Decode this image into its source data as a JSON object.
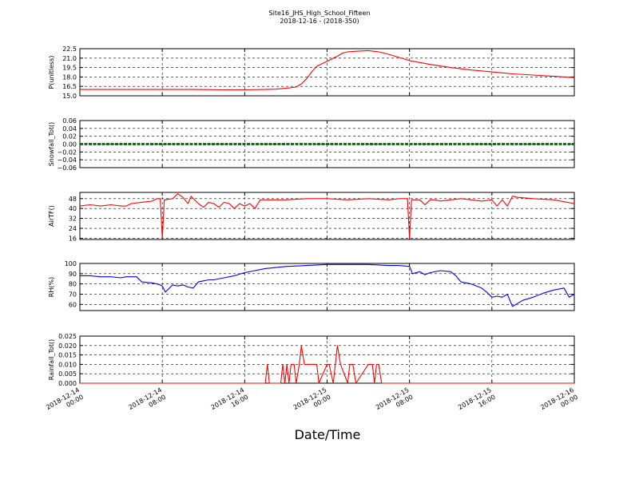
{
  "figure": {
    "title_line1": "Site16_JHS_High_School_Fifteen",
    "title_line2": "2018-12-16 - (2018-350)",
    "xlabel": "Date/Time"
  },
  "x_ticks": [
    {
      "x": 0,
      "line1": "2018-12-14",
      "line2": "00:00"
    },
    {
      "x": 8,
      "line1": "2018-12-14",
      "line2": "08:00"
    },
    {
      "x": 16,
      "line1": "2018-12-14",
      "line2": "16:00"
    },
    {
      "x": 24,
      "line1": "2018-12-15",
      "line2": "00:00"
    },
    {
      "x": 32,
      "line1": "2018-12-15",
      "line2": "08:00"
    },
    {
      "x": 40,
      "line1": "2018-12-15",
      "line2": "16:00"
    },
    {
      "x": 48,
      "line1": "2018-12-16",
      "line2": "00:00"
    }
  ],
  "chart_data": [
    {
      "type": "line",
      "ylabel": "P(unitless)",
      "ylim": [
        15.0,
        22.5
      ],
      "yticks": [
        "15.0",
        "16.5",
        "18.0",
        "19.5",
        "21.0",
        "22.5"
      ],
      "grid": true,
      "x_unit": "hours since 2018-12-14 00:00",
      "xlim": [
        0,
        48
      ],
      "series": [
        {
          "color": "#ff0000",
          "x": [
            0,
            4,
            8,
            11,
            14,
            16,
            18,
            19,
            20,
            21,
            21.5,
            22,
            22.5,
            23,
            24,
            25,
            25.5,
            26,
            27,
            28,
            29,
            30,
            31,
            32,
            34,
            36,
            38,
            40,
            42,
            44,
            46,
            48
          ],
          "y": [
            16.0,
            16.0,
            16.0,
            16.0,
            15.95,
            15.95,
            16.0,
            16.05,
            16.2,
            16.4,
            16.9,
            17.7,
            18.8,
            19.7,
            20.5,
            21.3,
            21.8,
            22.0,
            22.1,
            22.2,
            22.0,
            21.6,
            21.1,
            20.6,
            20.0,
            19.5,
            19.1,
            18.8,
            18.5,
            18.3,
            18.1,
            17.9
          ]
        }
      ]
    },
    {
      "type": "line",
      "ylabel": "Snowfall_Tot()",
      "ylim": [
        -0.06,
        0.06
      ],
      "yticks": [
        "−0.06",
        "−0.04",
        "−0.02",
        "0.00",
        "0.02",
        "0.04",
        "0.06"
      ],
      "grid": true,
      "x_unit": "hours since 2018-12-14 00:00",
      "xlim": [
        0,
        48
      ],
      "series": [
        {
          "color": "#008000",
          "marker": "dots",
          "x": [
            0,
            48
          ],
          "y": [
            0.0,
            0.0
          ]
        }
      ]
    },
    {
      "type": "line",
      "ylabel": "AirTF()",
      "ylim": [
        15,
        53
      ],
      "yticks": [
        "16",
        "24",
        "32",
        "40",
        "48"
      ],
      "grid": true,
      "x_unit": "hours since 2018-12-14 00:00",
      "xlim": [
        0,
        48
      ],
      "series": [
        {
          "color": "#ff0000",
          "x": [
            0,
            1,
            2,
            3,
            4,
            4.5,
            5,
            6,
            7,
            7.5,
            7.8,
            8.0,
            8.2,
            9,
            9.5,
            10,
            10.5,
            10.8,
            11,
            11.5,
            12,
            12.5,
            13,
            13.5,
            14,
            14.5,
            15,
            15.5,
            16,
            16.5,
            17,
            17.5,
            17.8,
            18,
            20,
            22,
            24,
            26,
            28,
            30,
            31,
            31.8,
            32.0,
            32.2,
            33,
            33.5,
            34,
            34.5,
            35,
            36,
            37,
            38,
            39,
            40,
            40.5,
            41,
            41.5,
            42,
            42.5,
            44,
            46,
            48
          ],
          "y": [
            42,
            43,
            42,
            43,
            42,
            42,
            44,
            45,
            46,
            48,
            48,
            16,
            47,
            48,
            52,
            49,
            44,
            50,
            48,
            44,
            41,
            45,
            44,
            41,
            45,
            44,
            40,
            44,
            42,
            44,
            40,
            47,
            47,
            47,
            47,
            48,
            48,
            47,
            48,
            47,
            48,
            48,
            16,
            47,
            47,
            43,
            47,
            47,
            46,
            47,
            48,
            47,
            46,
            47,
            42,
            47,
            42,
            50,
            49,
            48,
            47,
            44
          ]
        }
      ]
    },
    {
      "type": "line",
      "ylabel": "RH(%)",
      "ylim": [
        54,
        100
      ],
      "yticks": [
        "60",
        "70",
        "80",
        "90",
        "100"
      ],
      "grid": true,
      "x_unit": "hours since 2018-12-14 00:00",
      "xlim": [
        0,
        48
      ],
      "series": [
        {
          "color": "#0000ff",
          "x": [
            0,
            1,
            2,
            3,
            4,
            4.5,
            5,
            5.5,
            6,
            7,
            7.5,
            7.8,
            8.0,
            8.3,
            9,
            9.5,
            10,
            10.5,
            11,
            11.5,
            12,
            12.5,
            13,
            14,
            15,
            16,
            17,
            17.5,
            18,
            20,
            22,
            24,
            26,
            28,
            30,
            31,
            32,
            32.3,
            33,
            33.5,
            34,
            35,
            36,
            36.5,
            37,
            38,
            39,
            39.5,
            40,
            40.5,
            41,
            41.5,
            42,
            43,
            44,
            45,
            46,
            47,
            47.5,
            48
          ],
          "y": [
            88,
            88,
            87,
            87,
            86,
            87,
            87,
            87,
            82,
            81,
            80,
            79,
            78,
            72,
            79,
            78,
            79,
            77,
            76,
            82,
            83,
            84,
            84,
            86,
            88,
            91,
            93,
            94,
            95,
            97,
            98,
            99,
            99,
            99,
            98,
            98,
            97,
            90,
            92,
            89,
            91,
            93,
            92,
            88,
            82,
            80,
            76,
            72,
            67,
            68,
            67,
            70,
            58,
            64,
            67,
            71,
            74,
            76,
            67,
            70
          ]
        }
      ]
    },
    {
      "type": "line",
      "ylabel": "Rainfall_Tot()",
      "ylim": [
        0.0,
        0.025
      ],
      "yticks": [
        "0.000",
        "0.005",
        "0.010",
        "0.015",
        "0.020",
        "0.025"
      ],
      "grid": true,
      "x_unit": "hours since 2018-12-14 00:00",
      "xlim": [
        0,
        48
      ],
      "series": [
        {
          "color": "#ff0000",
          "x": [
            0,
            18,
            18.2,
            18.4,
            19.5,
            19.7,
            19.9,
            20.1,
            20.3,
            20.5,
            20.8,
            21.0,
            21.3,
            21.5,
            21.8,
            22.0,
            23,
            23.2,
            24,
            24.2,
            24.6,
            25,
            25.3,
            26,
            26.2,
            26.5,
            26.8,
            28,
            28.2,
            28.4,
            28.6,
            28.8,
            29,
            29.3,
            48
          ],
          "y": [
            0,
            0,
            0.01,
            0,
            0,
            0.01,
            0,
            0.01,
            0,
            0.01,
            0.01,
            0,
            0.01,
            0.02,
            0.01,
            0.01,
            0.01,
            0,
            0.01,
            0.01,
            0,
            0.02,
            0.01,
            0,
            0.01,
            0.01,
            0,
            0.01,
            0.01,
            0.01,
            0,
            0.01,
            0.01,
            0,
            0
          ]
        }
      ]
    }
  ]
}
